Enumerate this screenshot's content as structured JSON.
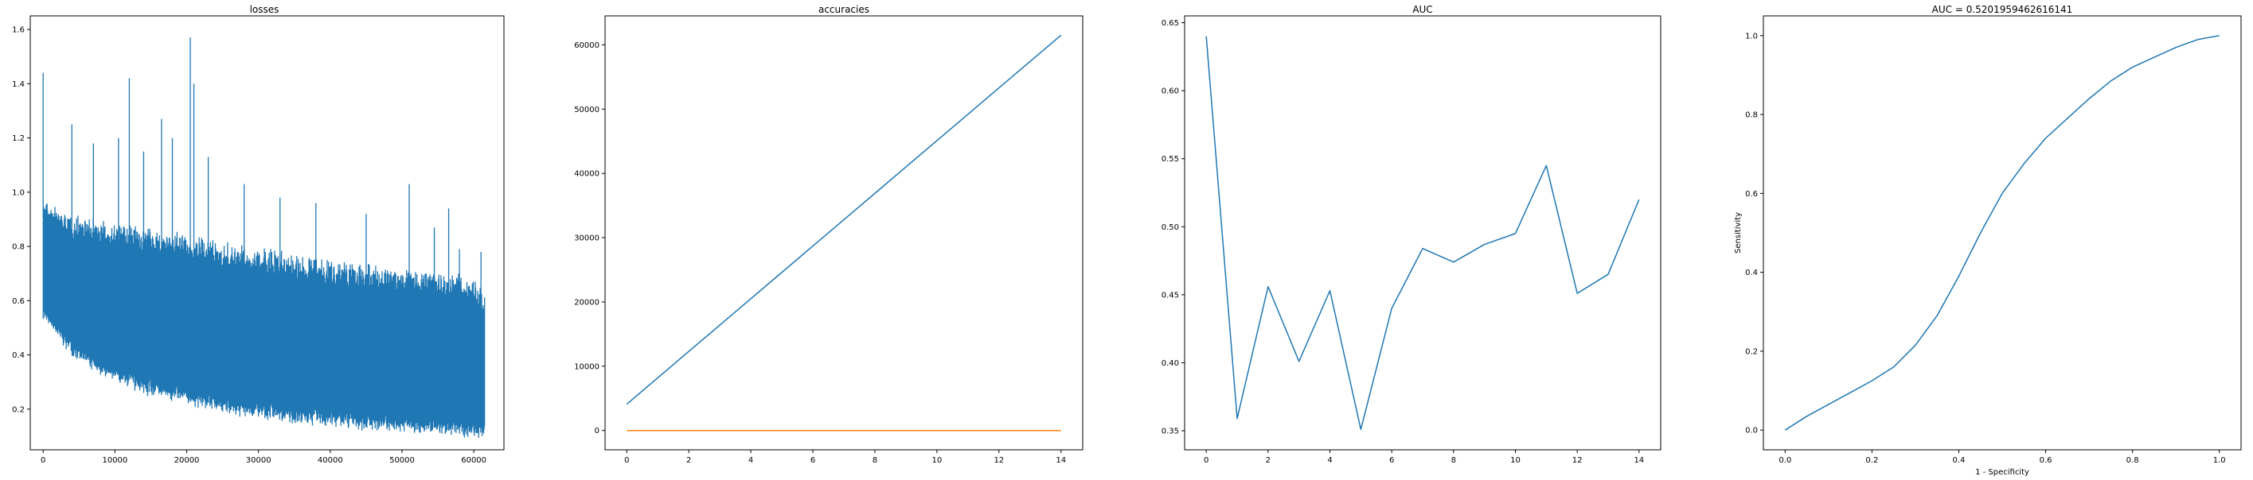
{
  "chart_data": [
    {
      "type": "line",
      "title": "losses",
      "xlabel": "",
      "ylabel": "",
      "xlim": [
        -1800,
        64200
      ],
      "ylim": [
        0.05,
        1.65
      ],
      "x_ticks": [
        0,
        10000,
        20000,
        30000,
        40000,
        50000,
        60000
      ],
      "x_tick_labels": [
        "0",
        "10000",
        "20000",
        "30000",
        "40000",
        "50000",
        "60000"
      ],
      "y_ticks": [
        0.2,
        0.4,
        0.6,
        0.8,
        1.0,
        1.2,
        1.4,
        1.6
      ],
      "y_tick_labels": [
        "0.2",
        "0.4",
        "0.6",
        "0.8",
        "1.0",
        "1.2",
        "1.4",
        "1.6"
      ],
      "grid": false,
      "series": [
        {
          "color": "#1f77b4",
          "envelope": {
            "x": [
              0,
              1000,
              3000,
              6000,
              10000,
              15000,
              20000,
              25000,
              30000,
              35000,
              40000,
              45000,
              50000,
              55000,
              60000,
              61500
            ],
            "lower": [
              0.56,
              0.52,
              0.45,
              0.38,
              0.32,
              0.27,
              0.24,
              0.21,
              0.19,
              0.17,
              0.16,
              0.15,
              0.14,
              0.13,
              0.12,
              0.12
            ],
            "upper": [
              0.95,
              0.93,
              0.9,
              0.88,
              0.86,
              0.84,
              0.82,
              0.79,
              0.77,
              0.75,
              0.73,
              0.71,
              0.7,
              0.69,
              0.66,
              0.6
            ]
          },
          "spikes": [
            {
              "x": 0,
              "y": 1.44
            },
            {
              "x": 4000,
              "y": 1.25
            },
            {
              "x": 7000,
              "y": 1.18
            },
            {
              "x": 10500,
              "y": 1.2
            },
            {
              "x": 12000,
              "y": 1.42
            },
            {
              "x": 14000,
              "y": 1.15
            },
            {
              "x": 16500,
              "y": 1.27
            },
            {
              "x": 18000,
              "y": 1.2
            },
            {
              "x": 20500,
              "y": 1.57
            },
            {
              "x": 21000,
              "y": 1.4
            },
            {
              "x": 23000,
              "y": 1.13
            },
            {
              "x": 28000,
              "y": 1.03
            },
            {
              "x": 33000,
              "y": 0.98
            },
            {
              "x": 38000,
              "y": 0.96
            },
            {
              "x": 45000,
              "y": 0.92
            },
            {
              "x": 51000,
              "y": 1.03
            },
            {
              "x": 54500,
              "y": 0.87
            },
            {
              "x": 56500,
              "y": 0.94
            },
            {
              "x": 58000,
              "y": 0.79
            },
            {
              "x": 61000,
              "y": 0.78
            }
          ]
        }
      ]
    },
    {
      "type": "line",
      "title": "accuracies",
      "xlabel": "",
      "ylabel": "",
      "xlim": [
        -0.7,
        14.7
      ],
      "ylim": [
        -3000,
        64500
      ],
      "x_ticks": [
        0,
        2,
        4,
        6,
        8,
        10,
        12,
        14
      ],
      "x_tick_labels": [
        "0",
        "2",
        "4",
        "6",
        "8",
        "10",
        "12",
        "14"
      ],
      "y_ticks": [
        0,
        10000,
        20000,
        30000,
        40000,
        50000,
        60000
      ],
      "y_tick_labels": [
        "0",
        "10000",
        "20000",
        "30000",
        "40000",
        "50000",
        "60000"
      ],
      "grid": false,
      "series": [
        {
          "color": "#1f77b4",
          "x": [
            0,
            1,
            2,
            3,
            4,
            5,
            6,
            7,
            8,
            9,
            10,
            11,
            12,
            13,
            14
          ],
          "values": [
            4100,
            8200,
            12300,
            16400,
            20500,
            24600,
            28700,
            32800,
            36900,
            41000,
            45100,
            49200,
            53300,
            57400,
            61500
          ]
        },
        {
          "color": "#ff7f0e",
          "x": [
            0,
            1,
            2,
            3,
            4,
            5,
            6,
            7,
            8,
            9,
            10,
            11,
            12,
            13,
            14
          ],
          "values": [
            0.5,
            0.5,
            0.5,
            0.5,
            0.5,
            0.5,
            0.5,
            0.5,
            0.5,
            0.5,
            0.5,
            0.5,
            0.5,
            0.5,
            0.5
          ]
        }
      ]
    },
    {
      "type": "line",
      "title": "AUC",
      "xlabel": "",
      "ylabel": "",
      "xlim": [
        -0.7,
        14.7
      ],
      "ylim": [
        0.336,
        0.655
      ],
      "x_ticks": [
        0,
        2,
        4,
        6,
        8,
        10,
        12,
        14
      ],
      "x_tick_labels": [
        "0",
        "2",
        "4",
        "6",
        "8",
        "10",
        "12",
        "14"
      ],
      "y_ticks": [
        0.35,
        0.4,
        0.45,
        0.5,
        0.55,
        0.6,
        0.65
      ],
      "y_tick_labels": [
        "0.35",
        "0.40",
        "0.45",
        "0.50",
        "0.55",
        "0.60",
        "0.65"
      ],
      "grid": false,
      "series": [
        {
          "color": "#1f77b4",
          "x": [
            0,
            1,
            2,
            3,
            4,
            5,
            6,
            7,
            8,
            9,
            10,
            11,
            12,
            13,
            14
          ],
          "values": [
            0.64,
            0.359,
            0.456,
            0.401,
            0.453,
            0.351,
            0.44,
            0.484,
            0.474,
            0.487,
            0.495,
            0.545,
            0.451,
            0.465,
            0.52
          ]
        }
      ]
    },
    {
      "type": "line",
      "title": "AUC = 0.5201959462616141",
      "xlabel": "1 - Specificity",
      "ylabel": "Sensitivity",
      "xlim": [
        -0.05,
        1.05
      ],
      "ylim": [
        -0.05,
        1.05
      ],
      "x_ticks": [
        0.0,
        0.2,
        0.4,
        0.6,
        0.8,
        1.0
      ],
      "x_tick_labels": [
        "0.0",
        "0.2",
        "0.4",
        "0.6",
        "0.8",
        "1.0"
      ],
      "y_ticks": [
        0.0,
        0.2,
        0.4,
        0.6,
        0.8,
        1.0
      ],
      "y_tick_labels": [
        "0.0",
        "0.2",
        "0.4",
        "0.6",
        "0.8",
        "1.0"
      ],
      "grid": false,
      "series": [
        {
          "color": "#1f77b4",
          "x": [
            0.0,
            0.05,
            0.1,
            0.15,
            0.2,
            0.25,
            0.3,
            0.35,
            0.4,
            0.45,
            0.5,
            0.55,
            0.6,
            0.65,
            0.7,
            0.75,
            0.8,
            0.85,
            0.9,
            0.95,
            1.0
          ],
          "values": [
            0.0,
            0.035,
            0.065,
            0.095,
            0.125,
            0.16,
            0.215,
            0.29,
            0.39,
            0.5,
            0.6,
            0.675,
            0.74,
            0.79,
            0.84,
            0.885,
            0.92,
            0.945,
            0.97,
            0.99,
            1.0
          ]
        }
      ]
    }
  ]
}
